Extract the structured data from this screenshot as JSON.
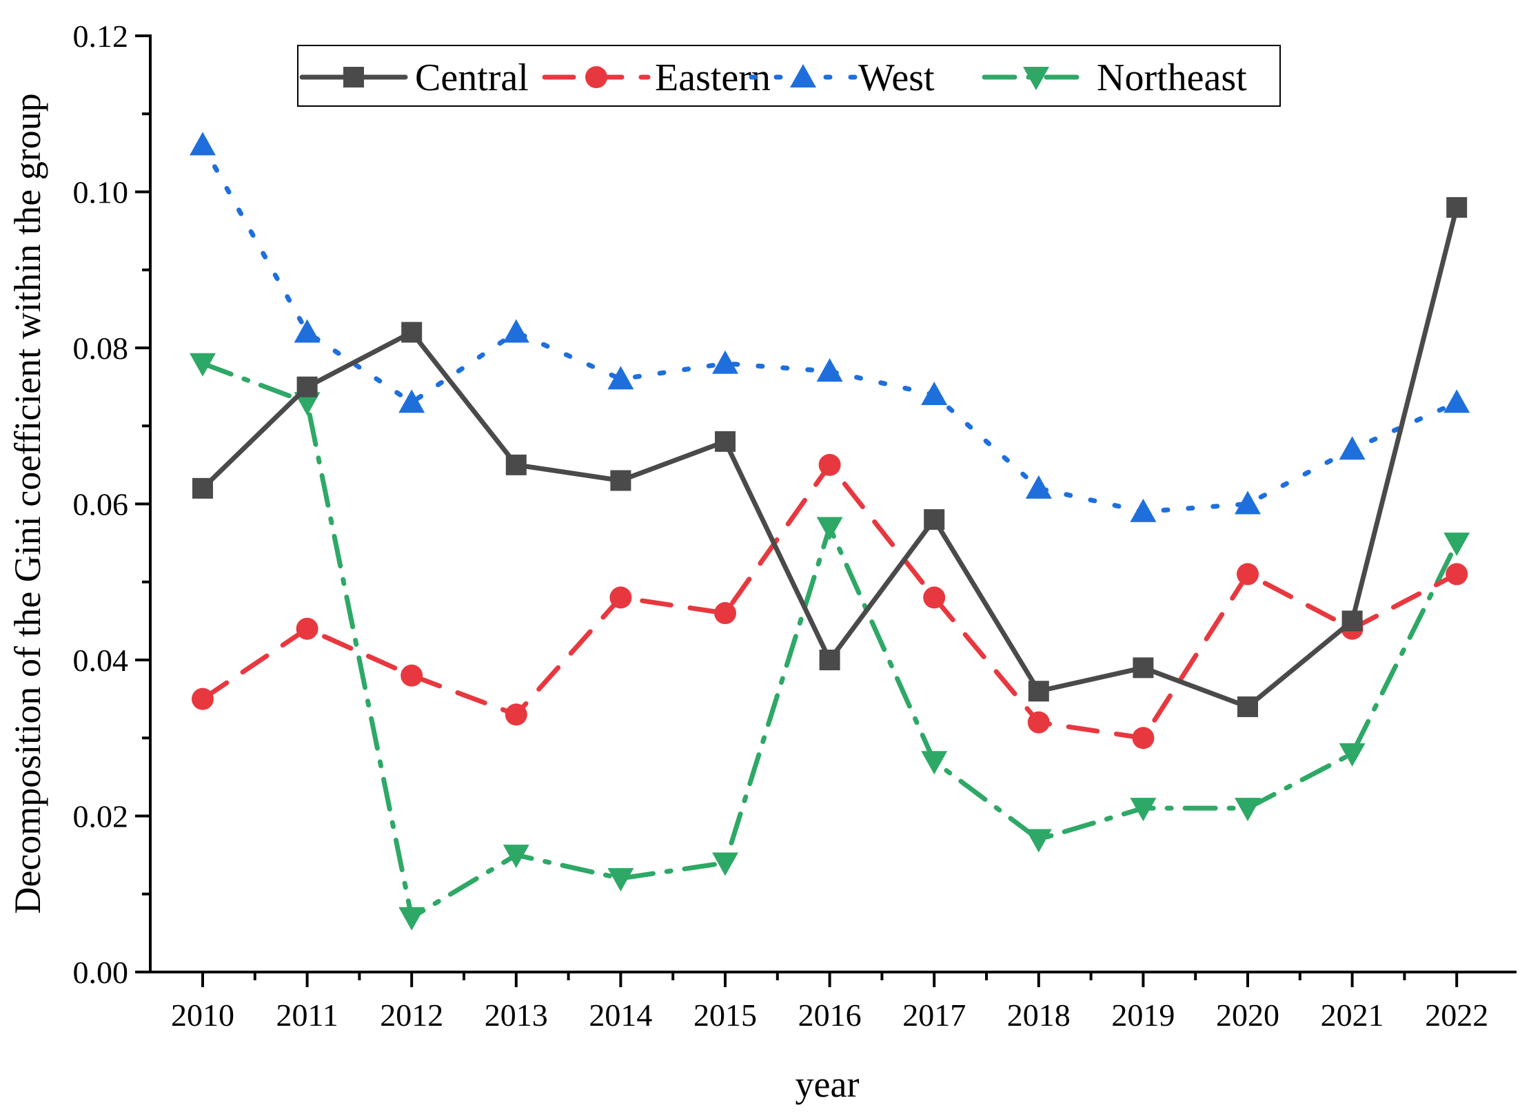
{
  "chart_data": {
    "type": "line",
    "title": "",
    "xlabel": "year",
    "ylabel": "Decomposition of the Gini coefficient within the group",
    "categories": [
      "2010",
      "2011",
      "2012",
      "2013",
      "2014",
      "2015",
      "2016",
      "2017",
      "2018",
      "2019",
      "2020",
      "2021",
      "2022"
    ],
    "ylim": [
      0,
      0.12
    ],
    "yticks": [
      "0.00",
      "0.02",
      "0.04",
      "0.06",
      "0.08",
      "0.10",
      "0.12"
    ],
    "grid": false,
    "legend_position": "top",
    "series": [
      {
        "name": "Central",
        "color": "#4a4a4a",
        "marker": "square",
        "line_style": "solid",
        "values": [
          0.062,
          0.075,
          0.082,
          0.065,
          0.063,
          0.068,
          0.04,
          0.058,
          0.036,
          0.039,
          0.034,
          0.045,
          0.098
        ]
      },
      {
        "name": "Eastern",
        "color": "#e8383f",
        "marker": "circle",
        "line_style": "dash",
        "values": [
          0.035,
          0.044,
          0.038,
          0.033,
          0.048,
          0.046,
          0.065,
          0.048,
          0.032,
          0.03,
          0.051,
          0.044,
          0.051
        ]
      },
      {
        "name": "West",
        "color": "#1e6fdc",
        "marker": "triangle-up",
        "line_style": "dot",
        "values": [
          0.106,
          0.082,
          0.073,
          0.082,
          0.076,
          0.078,
          0.077,
          0.074,
          0.062,
          0.059,
          0.06,
          0.067,
          0.073
        ]
      },
      {
        "name": "Northeast",
        "color": "#2ea866",
        "marker": "triangle-down",
        "line_style": "dashdot",
        "values": [
          0.078,
          0.073,
          0.007,
          0.015,
          0.012,
          0.014,
          0.057,
          0.027,
          0.017,
          0.021,
          0.021,
          0.028,
          0.055
        ]
      }
    ]
  }
}
